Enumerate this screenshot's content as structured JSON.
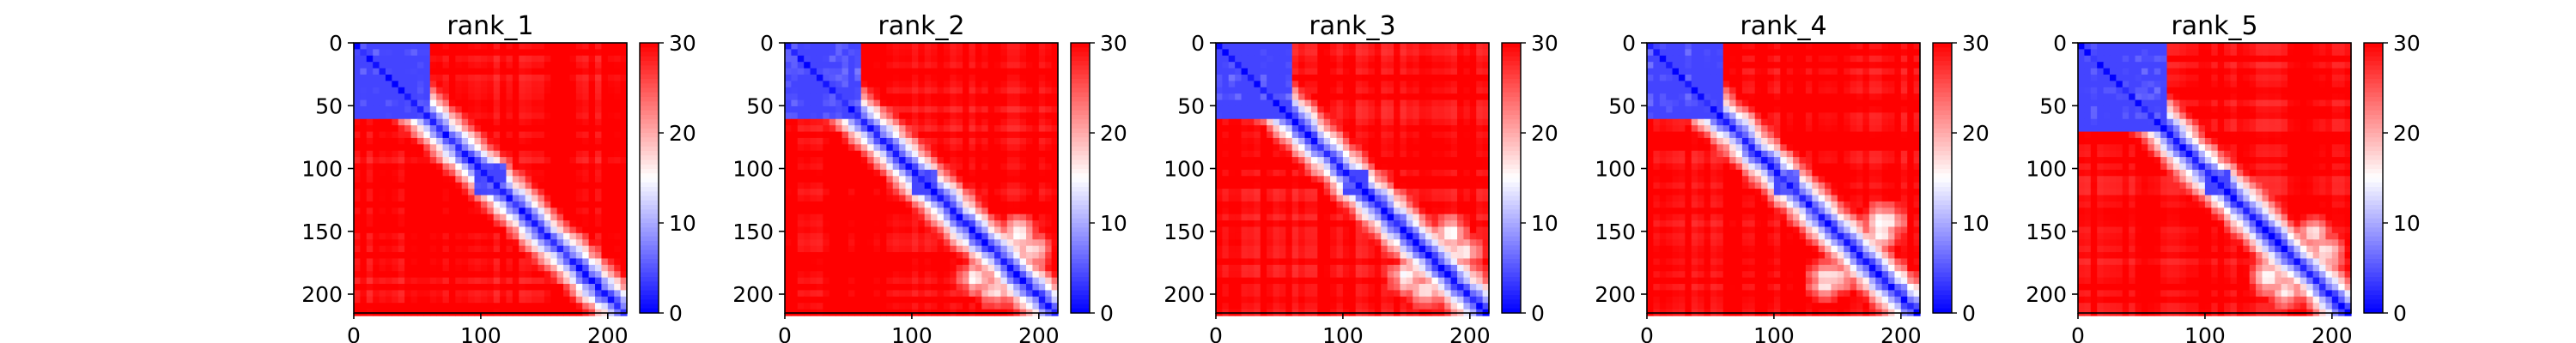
{
  "figure": {
    "color_scale": {
      "low": "#0000ff",
      "mid": "#ffffff",
      "high": "#ff0000"
    }
  },
  "chart_data": [
    {
      "type": "heatmap",
      "title": "rank_1",
      "n": 215,
      "xlim": [
        0,
        215
      ],
      "ylim": [
        215,
        0
      ],
      "xticks": [
        0,
        100,
        200
      ],
      "yticks": [
        0,
        50,
        100,
        150,
        200
      ],
      "colorbar": {
        "range": [
          0,
          30
        ],
        "ticks": [
          0,
          10,
          20,
          30
        ]
      },
      "domains": [
        [
          0,
          62
        ],
        [
          96,
          122
        ]
      ],
      "contact_patches": [],
      "notes": "blue block 0-62, blob near 110, red elsewhere"
    },
    {
      "type": "heatmap",
      "title": "rank_2",
      "n": 215,
      "xlim": [
        0,
        215
      ],
      "ylim": [
        215,
        0
      ],
      "xticks": [
        0,
        100,
        200
      ],
      "yticks": [
        0,
        50,
        100,
        150,
        200
      ],
      "colorbar": {
        "range": [
          0,
          30
        ],
        "ticks": [
          0,
          10,
          20,
          30
        ]
      },
      "domains": [
        [
          0,
          62
        ],
        [
          98,
          120
        ]
      ],
      "contact_patches": [
        [
          150,
          185
        ],
        [
          165,
          195
        ]
      ],
      "notes": "light X pattern in lower right"
    },
    {
      "type": "heatmap",
      "title": "rank_3",
      "n": 215,
      "xlim": [
        0,
        215
      ],
      "ylim": [
        215,
        0
      ],
      "xticks": [
        0,
        100,
        200
      ],
      "yticks": [
        0,
        50,
        100,
        150,
        200
      ],
      "colorbar": {
        "range": [
          0,
          30
        ],
        "ticks": [
          0,
          10,
          20,
          30
        ]
      },
      "domains": [
        [
          0,
          62
        ],
        [
          98,
          120
        ]
      ],
      "contact_patches": [
        [
          150,
          185
        ],
        [
          165,
          195
        ]
      ],
      "notes": "light X pattern in lower right"
    },
    {
      "type": "heatmap",
      "title": "rank_4",
      "n": 215,
      "xlim": [
        0,
        215
      ],
      "ylim": [
        215,
        0
      ],
      "xticks": [
        0,
        100,
        200
      ],
      "yticks": [
        0,
        50,
        100,
        150,
        200
      ],
      "colorbar": {
        "range": [
          0,
          30
        ],
        "ticks": [
          0,
          10,
          20,
          30
        ]
      },
      "domains": [
        [
          0,
          62
        ],
        [
          98,
          120
        ]
      ],
      "contact_patches": [
        [
          140,
          190
        ],
        [
          185,
          140
        ],
        [
          150,
          185
        ]
      ],
      "notes": "blue contact patches near (190,140)"
    },
    {
      "type": "heatmap",
      "title": "rank_5",
      "n": 215,
      "xlim": [
        0,
        215
      ],
      "ylim": [
        215,
        0
      ],
      "xticks": [
        0,
        100,
        200
      ],
      "yticks": [
        0,
        50,
        100,
        150,
        200
      ],
      "colorbar": {
        "range": [
          0,
          30
        ],
        "ticks": [
          0,
          10,
          20,
          30
        ]
      },
      "domains": [
        [
          0,
          68
        ],
        [
          98,
          120
        ]
      ],
      "contact_patches": [
        [
          150,
          185
        ],
        [
          165,
          195
        ]
      ],
      "notes": "light X pattern in lower right"
    }
  ]
}
